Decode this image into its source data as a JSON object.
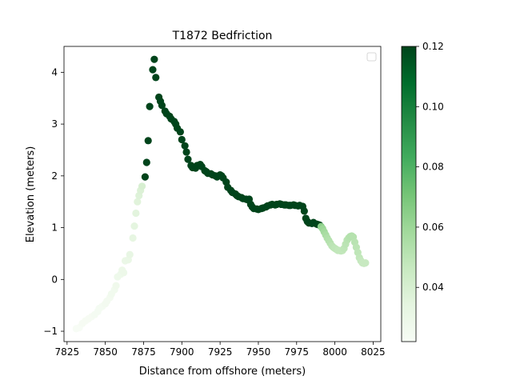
{
  "chart_data": {
    "type": "scatter",
    "title": "T1872 Bedfriction",
    "xlabel": "Distance from offshore (meters)",
    "ylabel": "Elevation (meters)",
    "xlim": [
      7823,
      8030
    ],
    "ylim": [
      -1.2,
      4.5
    ],
    "xticks": [
      7825,
      7850,
      7875,
      7900,
      7925,
      7950,
      7975,
      8000,
      8025
    ],
    "yticks": [
      -1,
      0,
      1,
      2,
      3,
      4
    ],
    "legend": "top-right (empty)",
    "colorbar": {
      "colormap": "Greens",
      "range": [
        0.022,
        0.12
      ],
      "ticks": [
        0.04,
        0.06,
        0.08,
        0.1,
        0.12
      ],
      "tick_labels": [
        "0.04",
        "0.06",
        "0.08",
        "0.10",
        "0.12"
      ]
    },
    "series": [
      {
        "points": [
          [
            7831,
            -0.95,
            0.022
          ],
          [
            7833,
            -0.93,
            0.022
          ],
          [
            7835,
            -0.85,
            0.023
          ],
          [
            7837,
            -0.8,
            0.023
          ],
          [
            7839,
            -0.76,
            0.023
          ],
          [
            7841,
            -0.72,
            0.023
          ],
          [
            7843,
            -0.68,
            0.024
          ],
          [
            7845,
            -0.62,
            0.024
          ],
          [
            7846,
            -0.56,
            0.024
          ],
          [
            7848,
            -0.52,
            0.024
          ],
          [
            7850,
            -0.47,
            0.025
          ],
          [
            7851,
            -0.42,
            0.025
          ],
          [
            7853,
            -0.35,
            0.025
          ],
          [
            7854,
            -0.28,
            0.026
          ],
          [
            7856,
            -0.2,
            0.026
          ],
          [
            7857,
            -0.12,
            0.027
          ],
          [
            7858,
            0.05,
            0.028
          ],
          [
            7860,
            0.1,
            0.028
          ],
          [
            7861,
            0.18,
            0.029
          ],
          [
            7862,
            0.13,
            0.029
          ],
          [
            7863,
            0.36,
            0.03
          ],
          [
            7865,
            0.38,
            0.031
          ],
          [
            7866,
            0.48,
            0.032
          ],
          [
            7868,
            0.8,
            0.033
          ],
          [
            7869,
            1.03,
            0.034
          ],
          [
            7870,
            1.28,
            0.035
          ],
          [
            7871,
            1.5,
            0.036
          ],
          [
            7872,
            1.62,
            0.037
          ],
          [
            7873,
            1.72,
            0.038
          ],
          [
            7874,
            1.8,
            0.04
          ],
          [
            7876,
            1.98,
            0.12
          ],
          [
            7877,
            2.26,
            0.12
          ],
          [
            7878,
            2.68,
            0.12
          ],
          [
            7879,
            3.34,
            0.12
          ],
          [
            7881,
            4.05,
            0.12
          ],
          [
            7882,
            4.25,
            0.12
          ],
          [
            7883,
            3.9,
            0.12
          ],
          [
            7885,
            3.52,
            0.12
          ],
          [
            7886,
            3.44,
            0.12
          ],
          [
            7887,
            3.36,
            0.12
          ],
          [
            7889,
            3.25,
            0.12
          ],
          [
            7890,
            3.2,
            0.12
          ],
          [
            7892,
            3.15,
            0.12
          ],
          [
            7893,
            3.1,
            0.12
          ],
          [
            7895,
            3.05,
            0.12
          ],
          [
            7896,
            3.0,
            0.12
          ],
          [
            7897,
            2.92,
            0.12
          ],
          [
            7899,
            2.85,
            0.12
          ],
          [
            7900,
            2.7,
            0.12
          ],
          [
            7902,
            2.58,
            0.12
          ],
          [
            7903,
            2.46,
            0.12
          ],
          [
            7904,
            2.32,
            0.12
          ],
          [
            7906,
            2.2,
            0.12
          ],
          [
            7907,
            2.16,
            0.12
          ],
          [
            7909,
            2.15,
            0.12
          ],
          [
            7910,
            2.2,
            0.12
          ],
          [
            7912,
            2.22,
            0.12
          ],
          [
            7913,
            2.18,
            0.12
          ],
          [
            7915,
            2.1,
            0.12
          ],
          [
            7916,
            2.08,
            0.12
          ],
          [
            7917,
            2.05,
            0.12
          ],
          [
            7919,
            2.04,
            0.12
          ],
          [
            7920,
            2.02,
            0.12
          ],
          [
            7922,
            2.0,
            0.12
          ],
          [
            7923,
            1.98,
            0.12
          ],
          [
            7925,
            2.02,
            0.12
          ],
          [
            7926,
            2.0,
            0.12
          ],
          [
            7927,
            1.96,
            0.12
          ],
          [
            7929,
            1.88,
            0.12
          ],
          [
            7930,
            1.78,
            0.12
          ],
          [
            7932,
            1.72,
            0.12
          ],
          [
            7933,
            1.68,
            0.12
          ],
          [
            7935,
            1.65,
            0.12
          ],
          [
            7936,
            1.62,
            0.12
          ],
          [
            7937,
            1.6,
            0.12
          ],
          [
            7939,
            1.58,
            0.12
          ],
          [
            7940,
            1.56,
            0.12
          ],
          [
            7942,
            1.55,
            0.12
          ],
          [
            7943,
            1.54,
            0.12
          ],
          [
            7944,
            1.55,
            0.12
          ],
          [
            7945,
            1.45,
            0.12
          ],
          [
            7946,
            1.4,
            0.12
          ],
          [
            7947,
            1.37,
            0.12
          ],
          [
            7949,
            1.36,
            0.12
          ],
          [
            7950,
            1.35,
            0.12
          ],
          [
            7952,
            1.37,
            0.12
          ],
          [
            7953,
            1.38,
            0.12
          ],
          [
            7955,
            1.4,
            0.12
          ],
          [
            7956,
            1.42,
            0.12
          ],
          [
            7958,
            1.44,
            0.12
          ],
          [
            7959,
            1.45,
            0.12
          ],
          [
            7961,
            1.44,
            0.12
          ],
          [
            7962,
            1.45,
            0.12
          ],
          [
            7964,
            1.46,
            0.12
          ],
          [
            7965,
            1.45,
            0.12
          ],
          [
            7967,
            1.44,
            0.12
          ],
          [
            7968,
            1.44,
            0.12
          ],
          [
            7970,
            1.43,
            0.12
          ],
          [
            7971,
            1.43,
            0.12
          ],
          [
            7973,
            1.44,
            0.12
          ],
          [
            7974,
            1.43,
            0.12
          ],
          [
            7976,
            1.42,
            0.12
          ],
          [
            7977,
            1.43,
            0.12
          ],
          [
            7979,
            1.41,
            0.12
          ],
          [
            7980,
            1.32,
            0.12
          ],
          [
            7981,
            1.18,
            0.12
          ],
          [
            7982,
            1.12,
            0.12
          ],
          [
            7983,
            1.09,
            0.12
          ],
          [
            7985,
            1.08,
            0.12
          ],
          [
            7986,
            1.1,
            0.12
          ],
          [
            7988,
            1.07,
            0.12
          ],
          [
            7989,
            1.06,
            0.12
          ],
          [
            7990,
            1.05,
            0.12
          ],
          [
            7991,
            1.02,
            0.065
          ],
          [
            7992,
            0.98,
            0.06
          ],
          [
            7993,
            0.92,
            0.058
          ],
          [
            7994,
            0.86,
            0.056
          ],
          [
            7995,
            0.8,
            0.054
          ],
          [
            7996,
            0.75,
            0.053
          ],
          [
            7997,
            0.7,
            0.052
          ],
          [
            7998,
            0.65,
            0.05
          ],
          [
            7999,
            0.62,
            0.05
          ],
          [
            8000,
            0.6,
            0.049
          ],
          [
            8001,
            0.58,
            0.049
          ],
          [
            8002,
            0.56,
            0.048
          ],
          [
            8003,
            0.56,
            0.048
          ],
          [
            8004,
            0.55,
            0.048
          ],
          [
            8005,
            0.56,
            0.048
          ],
          [
            8006,
            0.6,
            0.049
          ],
          [
            8007,
            0.68,
            0.05
          ],
          [
            8008,
            0.76,
            0.051
          ],
          [
            8009,
            0.8,
            0.052
          ],
          [
            8010,
            0.83,
            0.053
          ],
          [
            8011,
            0.84,
            0.053
          ],
          [
            8012,
            0.82,
            0.052
          ],
          [
            8013,
            0.72,
            0.051
          ],
          [
            8014,
            0.62,
            0.05
          ],
          [
            8015,
            0.52,
            0.049
          ],
          [
            8016,
            0.42,
            0.048
          ],
          [
            8017,
            0.36,
            0.047
          ],
          [
            8018,
            0.32,
            0.046
          ],
          [
            8019,
            0.31,
            0.046
          ],
          [
            8020,
            0.32,
            0.046
          ]
        ]
      }
    ]
  }
}
